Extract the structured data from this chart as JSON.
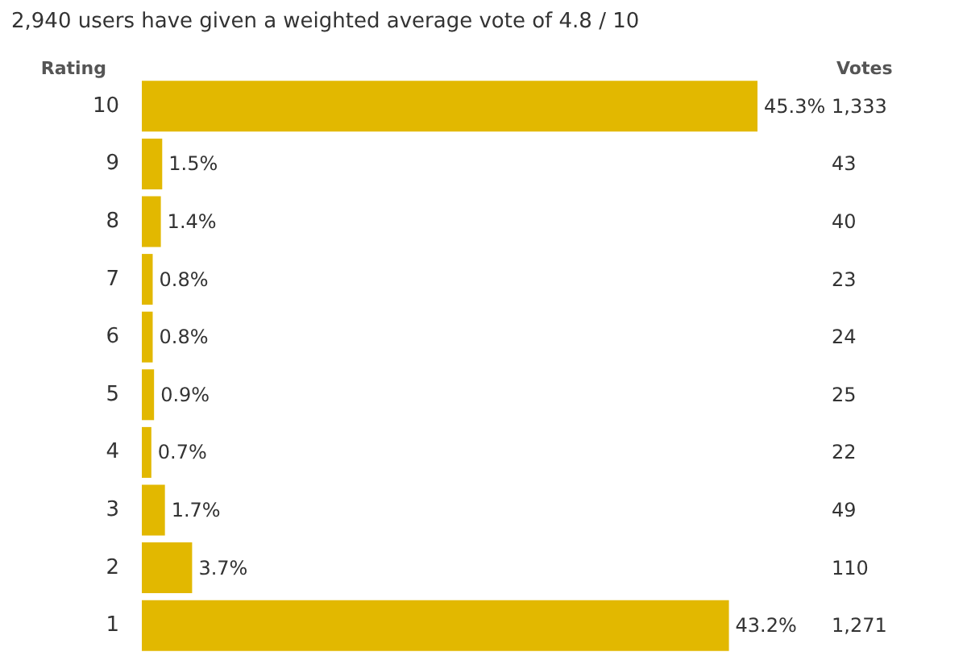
{
  "chart_data": {
    "type": "bar",
    "orientation": "horizontal",
    "title": "2,940 users have given a weighted average vote of 4.8 / 10",
    "ylabel": "Rating",
    "y2label": "Votes",
    "categories": [
      "10",
      "9",
      "8",
      "7",
      "6",
      "5",
      "4",
      "3",
      "2",
      "1"
    ],
    "values": [
      45.3,
      1.5,
      1.4,
      0.8,
      0.8,
      0.9,
      0.7,
      1.7,
      3.7,
      43.2
    ],
    "value_labels": [
      "45.3%",
      "1.5%",
      "1.4%",
      "0.8%",
      "0.8%",
      "0.9%",
      "0.7%",
      "1.7%",
      "3.7%",
      "43.2%"
    ],
    "color": "#e2b800",
    "annotations": [
      "1,333",
      "43",
      "40",
      "23",
      "24",
      "25",
      "22",
      "49",
      "110",
      "1,271"
    ]
  }
}
